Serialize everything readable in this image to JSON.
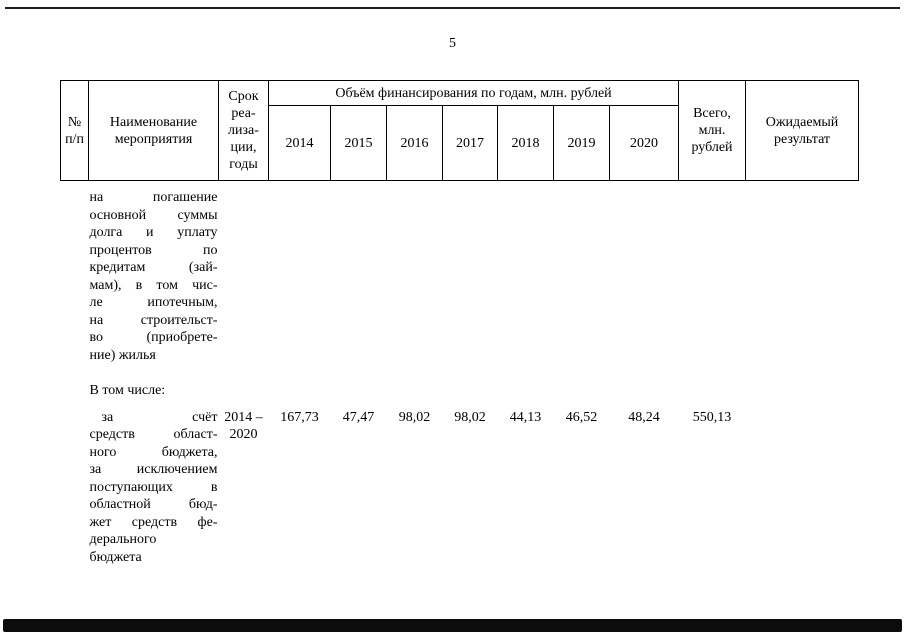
{
  "page": {
    "number": "5"
  },
  "table": {
    "header": {
      "col_no": "№\nп/п",
      "col_name": "Наименование\nмероприятия",
      "col_term": "Срок\nреа-\nлиза-\nции,\nгоды",
      "col_funding": "Объём финансирования по годам, млн. рублей",
      "years": [
        "2014",
        "2015",
        "2016",
        "2017",
        "2018",
        "2019",
        "2020"
      ],
      "col_total": "Всего,\nмлн.\nрублей",
      "col_result": "Ожидаемый\nрезультат"
    },
    "body": {
      "continuation_lines": "на погашение\nосновной суммы\nдолга и уплату\nпроцентов по\nкредитам (зай-\nмам), в том чис-\nле ипотечным,\nна строительст-\nво (приобрете-\nние) жилья",
      "including_label": "В том числе:",
      "row_regional": {
        "name_lines": "за счёт\nсредств област-\nного бюджета,\nза исключением\nпоступающих в\nобластной бюд-\nжет средств фе-\nдерального\nбюджета",
        "term": "2014 –\n2020",
        "values": [
          "167,73",
          "47,47",
          "98,02",
          "98,02",
          "44,13",
          "46,52",
          "48,24"
        ],
        "total": "550,13"
      }
    }
  }
}
